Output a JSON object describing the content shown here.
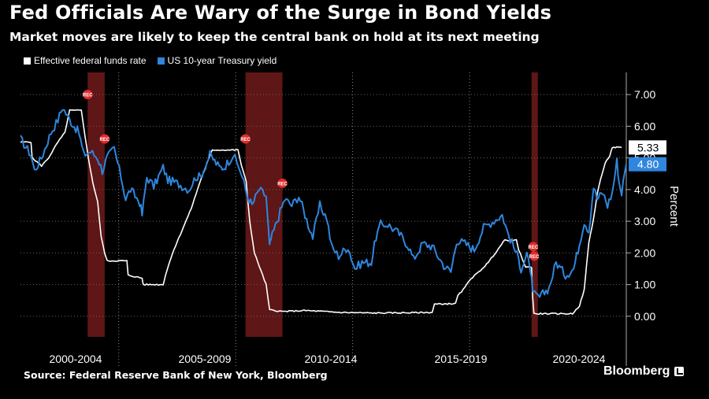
{
  "header": {
    "title": "Fed Officials Are Wary of the Surge in Bond Yields",
    "subtitle": "Market moves are likely to keep the central bank on hold at its next meeting"
  },
  "footer": {
    "source": "Source: Federal Reserve Bank of New York, Bloomberg",
    "brand": "Bloomberg"
  },
  "colors": {
    "fed_funds": "#ffffff",
    "treasury": "#2e86de",
    "recession": "#6e1a1a"
  },
  "chart_data": {
    "type": "line",
    "title": "Fed Officials Are Wary of the Surge in Bond Yields",
    "ylabel": "Percent",
    "ylim": [
      -0.65,
      7.7
    ],
    "xlim": [
      1998.3,
      2024.2
    ],
    "y_ticks": [
      "0.00",
      "1.00",
      "2.00",
      "3.00",
      "4.00",
      "5.00",
      "6.00",
      "7.00"
    ],
    "x_groups": [
      "2000-2004",
      "2005-2009",
      "2010-2014",
      "2015-2019",
      "2020-2024"
    ],
    "recessions": [
      {
        "start": 2001.17,
        "end": 2001.9,
        "label": "REC"
      },
      {
        "start": 2007.92,
        "end": 2009.5,
        "label": "REC"
      },
      {
        "start": 2020.15,
        "end": 2020.42,
        "label": "REC"
      }
    ],
    "legend_position": "top-left",
    "series": [
      {
        "name": "Effective federal funds rate",
        "color": "#ffffff",
        "end_label": "5.33",
        "points": [
          [
            1998.3,
            5.5
          ],
          [
            1998.75,
            5.5
          ],
          [
            1998.8,
            5.0
          ],
          [
            1999.2,
            4.75
          ],
          [
            1999.5,
            5.0
          ],
          [
            1999.9,
            5.5
          ],
          [
            2000.2,
            5.8
          ],
          [
            2000.4,
            6.5
          ],
          [
            2000.9,
            6.5
          ],
          [
            2001.0,
            6.0
          ],
          [
            2001.2,
            5.0
          ],
          [
            2001.4,
            4.2
          ],
          [
            2001.6,
            3.6
          ],
          [
            2001.75,
            2.5
          ],
          [
            2001.9,
            2.0
          ],
          [
            2002.0,
            1.75
          ],
          [
            2002.85,
            1.75
          ],
          [
            2002.9,
            1.3
          ],
          [
            2003.5,
            1.2
          ],
          [
            2003.55,
            1.0
          ],
          [
            2004.4,
            1.0
          ],
          [
            2004.5,
            1.3
          ],
          [
            2004.8,
            2.0
          ],
          [
            2005.2,
            2.7
          ],
          [
            2005.6,
            3.4
          ],
          [
            2006.0,
            4.3
          ],
          [
            2006.5,
            5.25
          ],
          [
            2007.6,
            5.25
          ],
          [
            2007.75,
            4.75
          ],
          [
            2007.95,
            4.25
          ],
          [
            2008.1,
            3.0
          ],
          [
            2008.3,
            2.0
          ],
          [
            2008.8,
            1.0
          ],
          [
            2008.95,
            0.2
          ],
          [
            2009.5,
            0.15
          ],
          [
            2010.5,
            0.18
          ],
          [
            2012.0,
            0.12
          ],
          [
            2013.5,
            0.1
          ],
          [
            2015.9,
            0.12
          ],
          [
            2016.0,
            0.38
          ],
          [
            2016.9,
            0.4
          ],
          [
            2017.0,
            0.65
          ],
          [
            2017.3,
            0.9
          ],
          [
            2017.5,
            1.15
          ],
          [
            2017.9,
            1.4
          ],
          [
            2018.3,
            1.7
          ],
          [
            2018.5,
            1.9
          ],
          [
            2018.8,
            2.2
          ],
          [
            2019.0,
            2.4
          ],
          [
            2019.5,
            2.4
          ],
          [
            2019.6,
            2.1
          ],
          [
            2019.9,
            1.55
          ],
          [
            2020.15,
            1.55
          ],
          [
            2020.2,
            0.6
          ],
          [
            2020.25,
            0.08
          ],
          [
            2021.9,
            0.08
          ],
          [
            2022.2,
            0.33
          ],
          [
            2022.4,
            0.83
          ],
          [
            2022.5,
            1.58
          ],
          [
            2022.6,
            2.33
          ],
          [
            2022.8,
            3.08
          ],
          [
            2022.95,
            3.83
          ],
          [
            2023.1,
            4.33
          ],
          [
            2023.3,
            4.83
          ],
          [
            2023.5,
            5.08
          ],
          [
            2023.6,
            5.33
          ],
          [
            2024.0,
            5.33
          ]
        ]
      },
      {
        "name": "US 10-year Treasury yield",
        "color": "#2e86de",
        "end_label": "4.80",
        "points": [
          [
            1998.3,
            5.6
          ],
          [
            1998.75,
            5.1
          ],
          [
            1998.9,
            4.6
          ],
          [
            1999.2,
            5.0
          ],
          [
            1999.6,
            5.8
          ],
          [
            1999.9,
            6.2
          ],
          [
            2000.1,
            6.6
          ],
          [
            2000.4,
            6.2
          ],
          [
            2000.8,
            5.8
          ],
          [
            2001.0,
            5.1
          ],
          [
            2001.3,
            5.2
          ],
          [
            2001.6,
            5.0
          ],
          [
            2001.8,
            4.6
          ],
          [
            2002.0,
            5.0
          ],
          [
            2002.3,
            5.3
          ],
          [
            2002.6,
            4.4
          ],
          [
            2002.8,
            3.7
          ],
          [
            2003.0,
            4.0
          ],
          [
            2003.4,
            3.6
          ],
          [
            2003.5,
            3.2
          ],
          [
            2003.7,
            4.4
          ],
          [
            2004.0,
            4.1
          ],
          [
            2004.4,
            4.7
          ],
          [
            2004.6,
            4.3
          ],
          [
            2005.0,
            4.2
          ],
          [
            2005.5,
            4.0
          ],
          [
            2005.8,
            4.4
          ],
          [
            2006.0,
            4.4
          ],
          [
            2006.4,
            5.1
          ],
          [
            2006.8,
            4.7
          ],
          [
            2007.0,
            4.7
          ],
          [
            2007.4,
            5.1
          ],
          [
            2007.7,
            4.6
          ],
          [
            2008.0,
            3.8
          ],
          [
            2008.2,
            3.5
          ],
          [
            2008.5,
            4.0
          ],
          [
            2008.8,
            3.8
          ],
          [
            2008.95,
            2.2
          ],
          [
            2009.0,
            2.4
          ],
          [
            2009.4,
            3.3
          ],
          [
            2009.6,
            3.7
          ],
          [
            2009.9,
            3.5
          ],
          [
            2010.2,
            3.8
          ],
          [
            2010.6,
            2.9
          ],
          [
            2010.8,
            2.5
          ],
          [
            2011.1,
            3.5
          ],
          [
            2011.4,
            3.1
          ],
          [
            2011.6,
            2.2
          ],
          [
            2011.9,
            1.9
          ],
          [
            2012.3,
            2.2
          ],
          [
            2012.6,
            1.5
          ],
          [
            2012.9,
            1.7
          ],
          [
            2013.3,
            1.7
          ],
          [
            2013.5,
            2.5
          ],
          [
            2013.7,
            2.9
          ],
          [
            2014.0,
            2.9
          ],
          [
            2014.5,
            2.6
          ],
          [
            2014.9,
            2.2
          ],
          [
            2015.1,
            1.8
          ],
          [
            2015.5,
            2.3
          ],
          [
            2015.9,
            2.2
          ],
          [
            2016.4,
            1.6
          ],
          [
            2016.7,
            1.4
          ],
          [
            2016.95,
            2.4
          ],
          [
            2017.3,
            2.3
          ],
          [
            2017.7,
            2.1
          ],
          [
            2018.1,
            2.8
          ],
          [
            2018.7,
            3.1
          ],
          [
            2018.9,
            3.2
          ],
          [
            2019.1,
            2.7
          ],
          [
            2019.6,
            1.8
          ],
          [
            2019.7,
            1.5
          ],
          [
            2019.95,
            1.9
          ],
          [
            2020.1,
            1.5
          ],
          [
            2020.2,
            0.7
          ],
          [
            2020.5,
            0.6
          ],
          [
            2020.9,
            0.9
          ],
          [
            2021.2,
            1.7
          ],
          [
            2021.6,
            1.3
          ],
          [
            2021.95,
            1.5
          ],
          [
            2022.2,
            2.3
          ],
          [
            2022.4,
            3.0
          ],
          [
            2022.6,
            2.7
          ],
          [
            2022.8,
            4.1
          ],
          [
            2022.95,
            3.7
          ],
          [
            2023.2,
            3.9
          ],
          [
            2023.4,
            3.5
          ],
          [
            2023.6,
            3.9
          ],
          [
            2023.8,
            4.9
          ],
          [
            2023.9,
            4.2
          ],
          [
            2024.0,
            3.9
          ],
          [
            2024.2,
            4.8
          ]
        ]
      }
    ]
  }
}
